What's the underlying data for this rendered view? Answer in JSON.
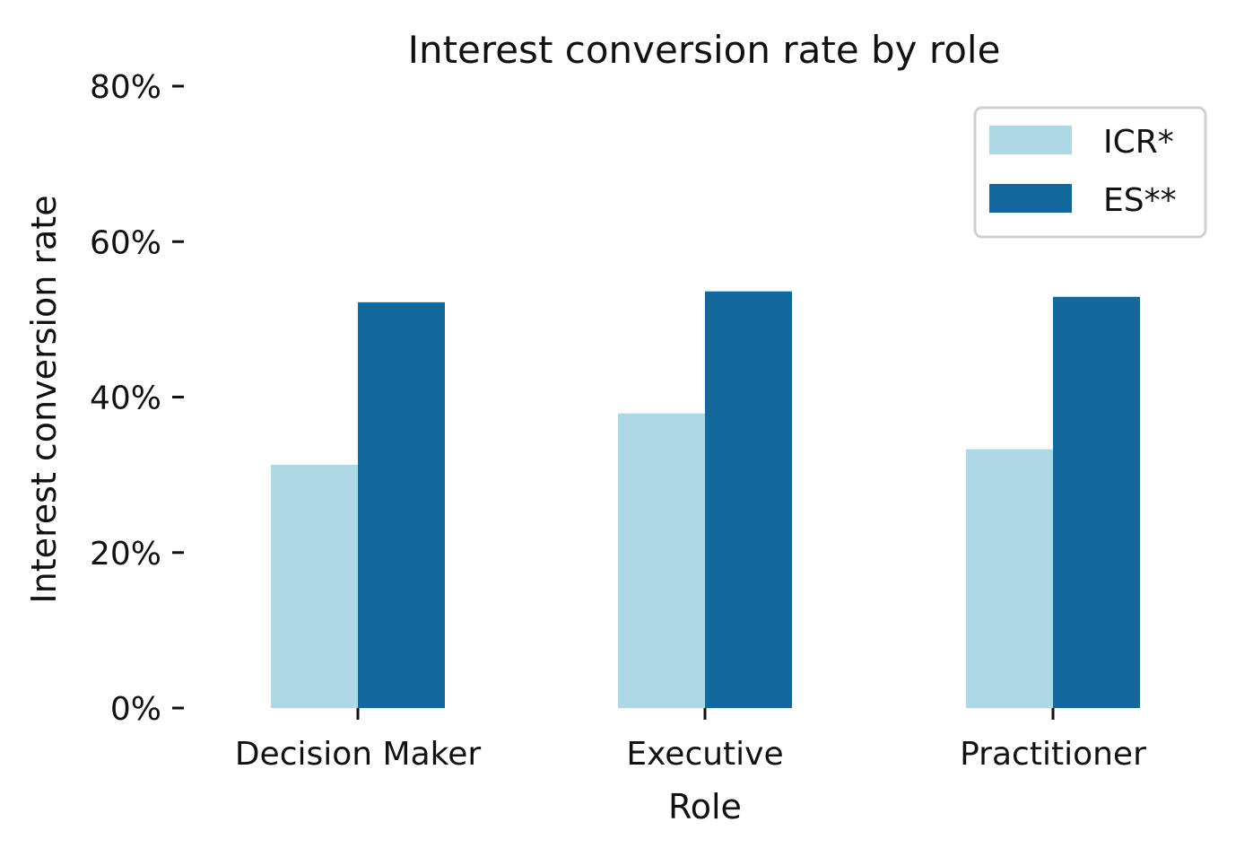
{
  "chart_data": {
    "type": "bar",
    "title": "Interest conversion rate by role",
    "xlabel": "Role",
    "ylabel": "Interest conversion rate",
    "categories": [
      "Decision Maker",
      "Executive",
      "Practitioner"
    ],
    "series": [
      {
        "name": "ICR*",
        "color": "#add8e6",
        "values": [
          0.313,
          0.379,
          0.333
        ]
      },
      {
        "name": "ES**",
        "color": "#13699b",
        "values": [
          0.522,
          0.536,
          0.529
        ]
      }
    ],
    "ylim": [
      0,
      0.8
    ],
    "yticks": [
      0,
      0.2,
      0.4,
      0.6,
      0.8
    ],
    "ytick_labels": [
      "0%",
      "20%",
      "40%",
      "60%",
      "80%"
    ],
    "grid": false,
    "legend_position": "top-right"
  }
}
